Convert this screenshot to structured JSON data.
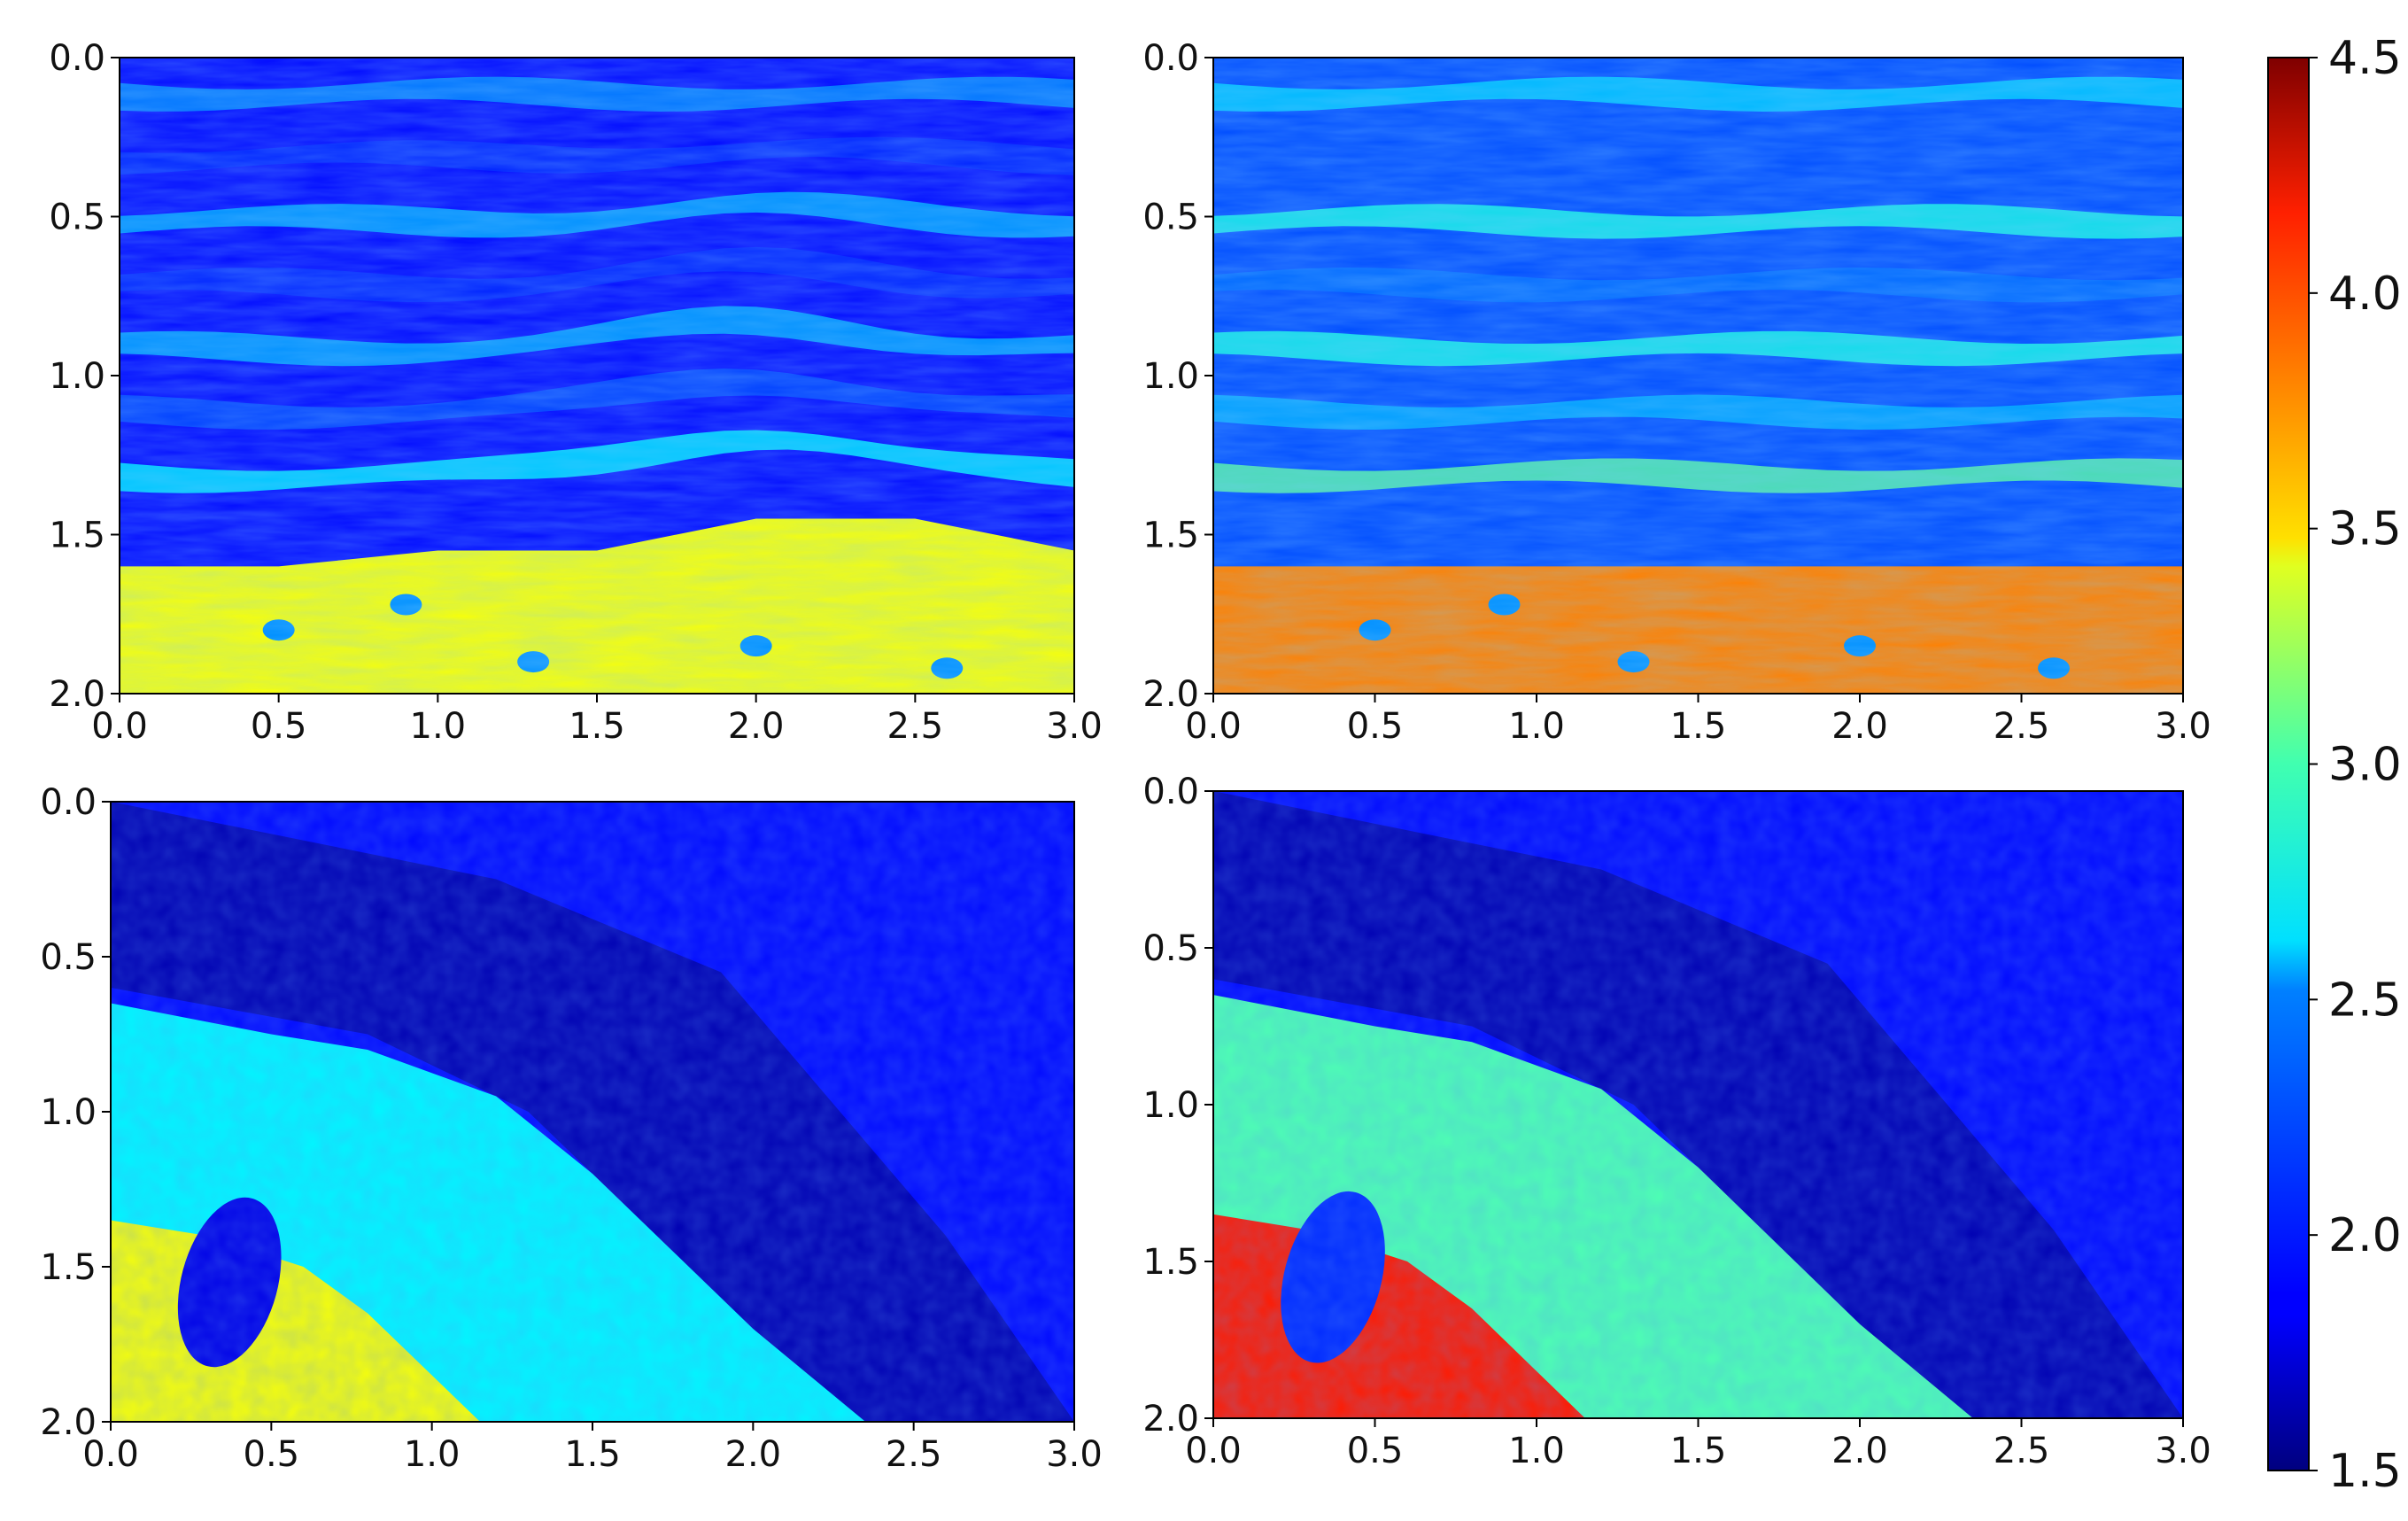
{
  "chart_data": [
    {
      "type": "heatmap",
      "panel": "top-left",
      "x_ticks": [
        "0.0",
        "0.5",
        "1.0",
        "1.5",
        "2.0",
        "2.5",
        "3.0"
      ],
      "y_ticks": [
        "0.0",
        "0.5",
        "1.0",
        "1.5",
        "2.0"
      ],
      "xlim": [
        0,
        3.0
      ],
      "ylim": [
        2.0,
        0.0
      ],
      "description_values": {
        "background_value": 1.9,
        "band_values": [
          2.3,
          2.0,
          2.4,
          2.0,
          2.4,
          2.1,
          2.6
        ],
        "bottom_layer_value": 3.35,
        "bottom_layer_boundary_y": [
          1.6,
          1.6,
          1.55,
          1.55,
          1.45,
          1.45,
          1.55
        ]
      }
    },
    {
      "type": "heatmap",
      "panel": "top-right",
      "x_ticks": [
        "0.0",
        "0.5",
        "1.0",
        "1.5",
        "2.0",
        "2.5",
        "3.0"
      ],
      "y_ticks": [
        "0.0",
        "0.5",
        "1.0",
        "1.5",
        "2.0"
      ],
      "xlim": [
        0,
        3.0
      ],
      "ylim": [
        2.0,
        0.0
      ],
      "description_values": {
        "background_value": 2.1,
        "band_values": [
          2.5,
          2.1,
          2.7,
          2.2,
          2.7,
          2.4,
          2.9
        ],
        "bottom_layer_value": 3.75,
        "bottom_layer_boundary_y": [
          1.6,
          1.6,
          1.6,
          1.6,
          1.6,
          1.6,
          1.6
        ]
      }
    },
    {
      "type": "heatmap",
      "panel": "bottom-left",
      "x_ticks": [
        "0.0",
        "0.5",
        "1.0",
        "1.5",
        "2.0",
        "2.5",
        "3.0"
      ],
      "y_ticks": [
        "0.0",
        "0.5",
        "1.0",
        "1.5",
        "2.0"
      ],
      "xlim": [
        0,
        3.0
      ],
      "ylim": [
        2.0,
        0.0
      ],
      "description_values": {
        "background_value": 1.9,
        "dark_band_value": 1.65,
        "middle_layer_value": 2.6,
        "bottom_pocket_value": 3.35,
        "lens_value": 1.8
      }
    },
    {
      "type": "heatmap",
      "panel": "bottom-right",
      "x_ticks": [
        "0.0",
        "0.5",
        "1.0",
        "1.5",
        "2.0",
        "2.5",
        "3.0"
      ],
      "y_ticks": [
        "0.0",
        "0.5",
        "1.0",
        "1.5",
        "2.0"
      ],
      "xlim": [
        0,
        3.0
      ],
      "ylim": [
        2.0,
        0.0
      ],
      "description_values": {
        "background_value": 1.9,
        "dark_band_value": 1.65,
        "middle_layer_value": 2.85,
        "bottom_pocket_value": 4.05,
        "lens_value": 2.0
      }
    }
  ],
  "colorbar": {
    "colormap": "jet",
    "range": [
      1.5,
      4.5
    ],
    "ticks": [
      "1.5",
      "2.0",
      "2.5",
      "3.0",
      "3.5",
      "4.0",
      "4.5"
    ]
  }
}
